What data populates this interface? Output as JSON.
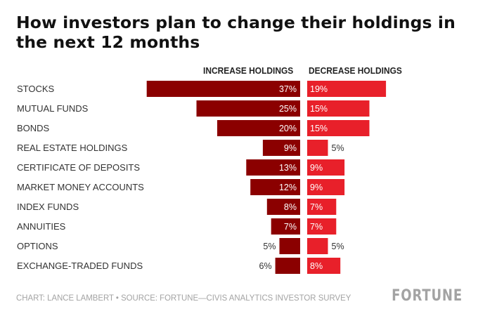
{
  "title": "How investors plan to change their holdings in the next 12 months",
  "footer": "CHART: LANCE LAMBERT • SOURCE: FORTUNE—CIVIS ANALYTICS INVESTOR SURVEY",
  "logo": "FORTUNE",
  "colors": {
    "increase": "#8b0000",
    "decrease": "#e8202a"
  },
  "chart_data": {
    "type": "bar",
    "title": "How investors plan to change their holdings in the next 12 months",
    "value_unit": "%",
    "categories": [
      "STOCKS",
      "MUTUAL FUNDS",
      "BONDS",
      "REAL ESTATE HOLDINGS",
      "CERTIFICATE OF DEPOSITS",
      "MARKET MONEY ACCOUNTS",
      "INDEX FUNDS",
      "ANNUITIES",
      "OPTIONS",
      "EXCHANGE-TRADED FUNDS"
    ],
    "series": [
      {
        "name": "INCREASE HOLDINGS",
        "values": [
          37,
          25,
          20,
          9,
          13,
          12,
          8,
          7,
          5,
          6
        ]
      },
      {
        "name": "DECREASE HOLDINGS",
        "values": [
          19,
          15,
          15,
          5,
          9,
          9,
          7,
          7,
          5,
          8
        ]
      }
    ],
    "xlabel": "",
    "ylabel": ""
  }
}
